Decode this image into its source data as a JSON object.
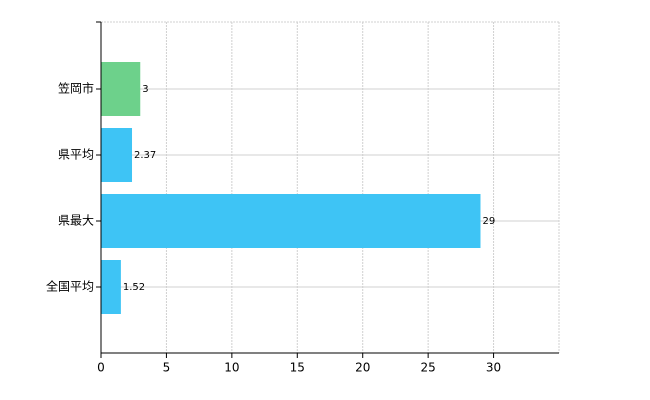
{
  "chart_data": {
    "type": "hbar",
    "categories": [
      "笠岡市",
      "県平均",
      "県最大",
      "全国平均"
    ],
    "values": [
      3,
      2.37,
      29,
      1.52
    ],
    "colors": [
      "#6dd18b",
      "#3ec4f5",
      "#3ec4f5",
      "#3ec4f5"
    ],
    "xlim": [
      0,
      35
    ],
    "xticks": [
      0,
      5,
      10,
      15,
      20,
      25,
      30
    ],
    "grid": true
  }
}
